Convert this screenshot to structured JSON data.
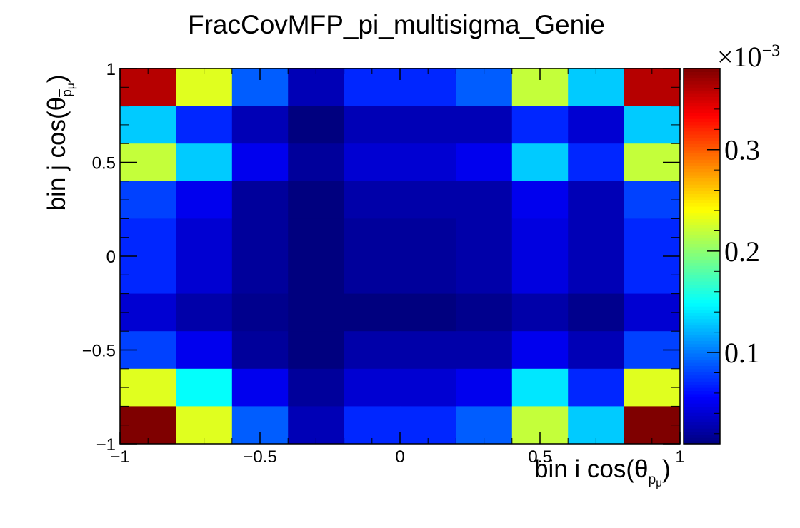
{
  "chart_data": {
    "type": "heatmap",
    "title": "FracCovMFP_pi_multisigma_Genie",
    "xlabel_prefix": "bin i cos(θ",
    "ylabel_prefix": "bin j cos(θ",
    "label_sub_base": "p",
    "label_sub_sub": "μ",
    "label_suffix": ")",
    "x_edges": [
      -1,
      -0.8,
      -0.6,
      -0.4,
      -0.2,
      0,
      0.2,
      0.4,
      0.6,
      0.8,
      1
    ],
    "y_edges": [
      -1,
      -0.8,
      -0.6,
      -0.4,
      -0.2,
      0,
      0.2,
      0.4,
      0.6,
      0.8,
      1
    ],
    "xlim": [
      -1,
      1
    ],
    "ylim": [
      -1,
      1
    ],
    "x_ticks": [
      -1,
      -0.5,
      0,
      0.5,
      1
    ],
    "x_tick_labels": [
      "−1",
      "−0.5",
      "0",
      "0.5",
      "1"
    ],
    "y_ticks": [
      -1,
      -0.5,
      0,
      0.5,
      1
    ],
    "y_tick_labels": [
      "−1",
      "−0.5",
      "0",
      "0.5",
      "1"
    ],
    "z_multiplier_label": "×10",
    "z_multiplier_exp": "−3",
    "zlim": [
      0.01,
      0.38
    ],
    "z_ticks": [
      0.1,
      0.2,
      0.3
    ],
    "z_tick_labels": [
      "0.1",
      "0.2",
      "0.3"
    ],
    "values_rows_top_to_bottom": [
      [
        0.36,
        0.23,
        0.09,
        0.03,
        0.07,
        0.07,
        0.09,
        0.22,
        0.13,
        0.36
      ],
      [
        0.13,
        0.07,
        0.03,
        0.01,
        0.03,
        0.03,
        0.03,
        0.07,
        0.04,
        0.13
      ],
      [
        0.22,
        0.13,
        0.05,
        0.02,
        0.04,
        0.04,
        0.05,
        0.13,
        0.07,
        0.22
      ],
      [
        0.08,
        0.05,
        0.02,
        0.01,
        0.025,
        0.025,
        0.025,
        0.05,
        0.03,
        0.08
      ],
      [
        0.07,
        0.04,
        0.02,
        0.01,
        0.02,
        0.02,
        0.025,
        0.045,
        0.03,
        0.07
      ],
      [
        0.07,
        0.04,
        0.02,
        0.01,
        0.02,
        0.02,
        0.025,
        0.045,
        0.03,
        0.07
      ],
      [
        0.04,
        0.025,
        0.015,
        0.01,
        0.01,
        0.01,
        0.015,
        0.025,
        0.015,
        0.04
      ],
      [
        0.08,
        0.05,
        0.02,
        0.01,
        0.025,
        0.025,
        0.025,
        0.05,
        0.03,
        0.08
      ],
      [
        0.23,
        0.15,
        0.05,
        0.02,
        0.04,
        0.04,
        0.05,
        0.14,
        0.07,
        0.23
      ],
      [
        0.38,
        0.23,
        0.09,
        0.03,
        0.07,
        0.07,
        0.09,
        0.22,
        0.13,
        0.38
      ]
    ],
    "colormap": [
      "#00007f",
      "#0000ff",
      "#007fff",
      "#00ffff",
      "#7fff7f",
      "#ffff00",
      "#ff7f00",
      "#ff0000",
      "#7f0000"
    ]
  }
}
